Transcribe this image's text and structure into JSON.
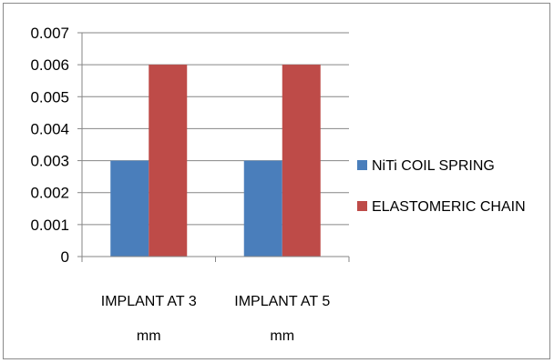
{
  "chart_data": {
    "type": "bar",
    "categories": [
      [
        "IMPLANT AT 3",
        "mm"
      ],
      [
        "IMPLANT AT 5",
        "mm"
      ]
    ],
    "series": [
      {
        "name": "NiTi COIL SPRING",
        "values": [
          0.003,
          0.003
        ],
        "color": "#4a7ebb"
      },
      {
        "name": "ELASTOMERIC CHAIN",
        "values": [
          0.006,
          0.006
        ],
        "color": "#be4b48"
      }
    ],
    "yticks": [
      "0",
      "0.001",
      "0.002",
      "0.003",
      "0.004",
      "0.005",
      "0.006",
      "0.007"
    ],
    "ylim": [
      0,
      0.007
    ],
    "grid": true,
    "legend_position": "right",
    "gridline_color": "#868686"
  }
}
